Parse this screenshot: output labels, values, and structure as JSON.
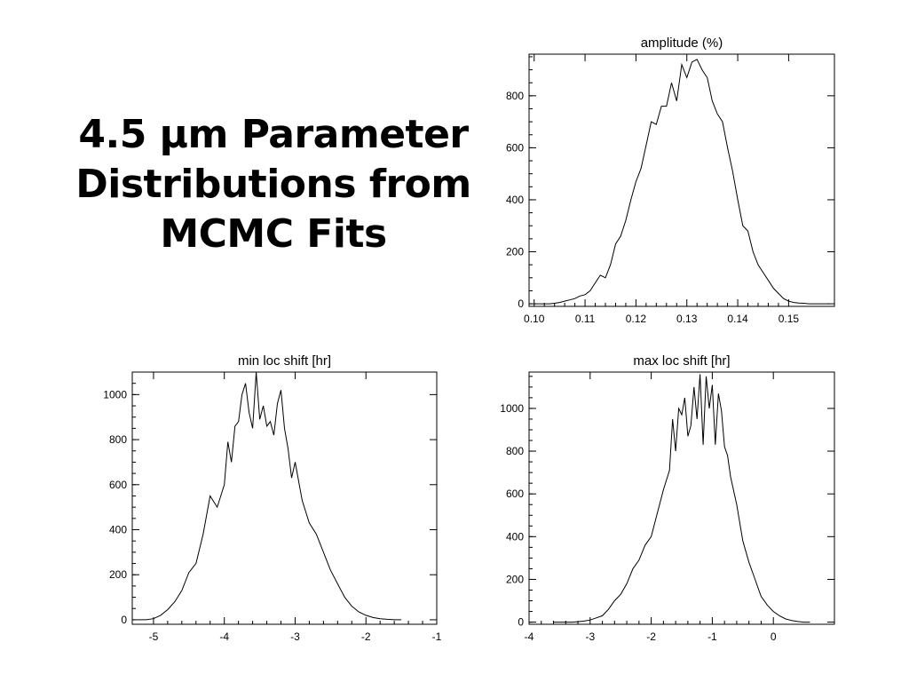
{
  "slide": {
    "title_lines": [
      "4.5 μm Parameter",
      "Distributions from",
      "MCMC Fits"
    ]
  },
  "chart_data": [
    {
      "type": "line",
      "title": "amplitude (%)",
      "xlabel": "",
      "ylabel": "",
      "xlim": [
        0.099,
        0.159
      ],
      "ylim": [
        -10,
        960
      ],
      "xticks": [
        0.1,
        0.11,
        0.12,
        0.13,
        0.14,
        0.15
      ],
      "xtick_labels": [
        "0.10",
        "0.11",
        "0.12",
        "0.13",
        "0.14",
        "0.15"
      ],
      "yticks": [
        0,
        200,
        400,
        600,
        800
      ],
      "ytick_labels": [
        "0",
        "200",
        "400",
        "600",
        "800"
      ],
      "grid": false,
      "x": [
        0.1,
        0.101,
        0.102,
        0.103,
        0.104,
        0.105,
        0.106,
        0.107,
        0.108,
        0.109,
        0.11,
        0.111,
        0.112,
        0.113,
        0.114,
        0.115,
        0.116,
        0.117,
        0.118,
        0.119,
        0.12,
        0.121,
        0.122,
        0.123,
        0.124,
        0.125,
        0.126,
        0.127,
        0.128,
        0.129,
        0.13,
        0.131,
        0.132,
        0.133,
        0.134,
        0.135,
        0.136,
        0.137,
        0.138,
        0.139,
        0.14,
        0.141,
        0.142,
        0.143,
        0.144,
        0.145,
        0.146,
        0.147,
        0.148,
        0.149,
        0.15,
        0.151,
        0.152,
        0.153,
        0.154,
        0.155,
        0.156,
        0.157,
        0.158
      ],
      "y": [
        0,
        0,
        0,
        0,
        2,
        5,
        10,
        15,
        20,
        30,
        35,
        50,
        80,
        110,
        100,
        150,
        230,
        260,
        320,
        400,
        470,
        520,
        610,
        700,
        690,
        760,
        760,
        850,
        780,
        920,
        870,
        930,
        940,
        900,
        870,
        780,
        730,
        700,
        600,
        510,
        400,
        300,
        280,
        200,
        150,
        120,
        90,
        60,
        40,
        20,
        10,
        5,
        3,
        2,
        0,
        0,
        0,
        0,
        0
      ]
    },
    {
      "type": "line",
      "title": "min loc shift [hr]",
      "xlabel": "",
      "ylabel": "",
      "xlim": [
        -5.3,
        -1.0
      ],
      "ylim": [
        -20,
        1100
      ],
      "xticks": [
        -5,
        -4,
        -3,
        -2,
        -1
      ],
      "xtick_labels": [
        "-5",
        "-4",
        "-3",
        "-2",
        "-1"
      ],
      "yticks": [
        0,
        200,
        400,
        600,
        800,
        1000
      ],
      "ytick_labels": [
        "0",
        "200",
        "400",
        "600",
        "800",
        "1000"
      ],
      "grid": false,
      "x": [
        -5.2,
        -5.1,
        -5.0,
        -4.9,
        -4.8,
        -4.7,
        -4.6,
        -4.5,
        -4.4,
        -4.3,
        -4.2,
        -4.1,
        -4.0,
        -3.95,
        -3.9,
        -3.85,
        -3.8,
        -3.75,
        -3.7,
        -3.65,
        -3.6,
        -3.55,
        -3.5,
        -3.45,
        -3.4,
        -3.35,
        -3.3,
        -3.25,
        -3.2,
        -3.15,
        -3.1,
        -3.05,
        -3.0,
        -2.9,
        -2.8,
        -2.7,
        -2.6,
        -2.5,
        -2.4,
        -2.3,
        -2.2,
        -2.1,
        -2.0,
        -1.9,
        -1.8,
        -1.7,
        -1.6,
        -1.5
      ],
      "y": [
        0,
        0,
        5,
        20,
        45,
        80,
        130,
        210,
        250,
        380,
        550,
        500,
        600,
        790,
        700,
        860,
        880,
        1000,
        1050,
        920,
        850,
        1100,
        890,
        950,
        860,
        880,
        820,
        960,
        1020,
        850,
        760,
        630,
        700,
        530,
        430,
        380,
        300,
        220,
        160,
        100,
        60,
        35,
        20,
        10,
        5,
        2,
        0,
        0
      ]
    },
    {
      "type": "line",
      "title": "max loc shift [hr]",
      "xlabel": "",
      "ylabel": "",
      "xlim": [
        -4.0,
        1.0
      ],
      "ylim": [
        -10,
        1170
      ],
      "xticks": [
        -4,
        -3,
        -2,
        -1,
        0
      ],
      "xtick_labels": [
        "-4",
        "-3",
        "-2",
        "-1",
        "0"
      ],
      "yticks": [
        0,
        200,
        400,
        600,
        800,
        1000
      ],
      "ytick_labels": [
        "0",
        "200",
        "400",
        "600",
        "800",
        "1000"
      ],
      "grid": false,
      "x": [
        -3.6,
        -3.5,
        -3.4,
        -3.3,
        -3.2,
        -3.1,
        -3.0,
        -2.9,
        -2.8,
        -2.7,
        -2.6,
        -2.5,
        -2.4,
        -2.3,
        -2.2,
        -2.1,
        -2.0,
        -1.9,
        -1.8,
        -1.7,
        -1.65,
        -1.6,
        -1.55,
        -1.5,
        -1.45,
        -1.4,
        -1.35,
        -1.3,
        -1.25,
        -1.2,
        -1.15,
        -1.1,
        -1.05,
        -1.0,
        -0.95,
        -0.9,
        -0.85,
        -0.8,
        -0.75,
        -0.7,
        -0.6,
        -0.5,
        -0.4,
        -0.3,
        -0.2,
        -0.1,
        0.0,
        0.1,
        0.2,
        0.3,
        0.4,
        0.5,
        0.6
      ],
      "y": [
        0,
        0,
        0,
        0,
        2,
        5,
        10,
        20,
        30,
        60,
        100,
        130,
        180,
        250,
        290,
        360,
        400,
        510,
        620,
        710,
        950,
        800,
        1000,
        970,
        1050,
        870,
        920,
        1100,
        950,
        1160,
        830,
        1150,
        1000,
        1110,
        830,
        1070,
        990,
        820,
        780,
        680,
        550,
        380,
        280,
        200,
        120,
        80,
        50,
        30,
        15,
        8,
        3,
        0,
        0
      ]
    }
  ]
}
